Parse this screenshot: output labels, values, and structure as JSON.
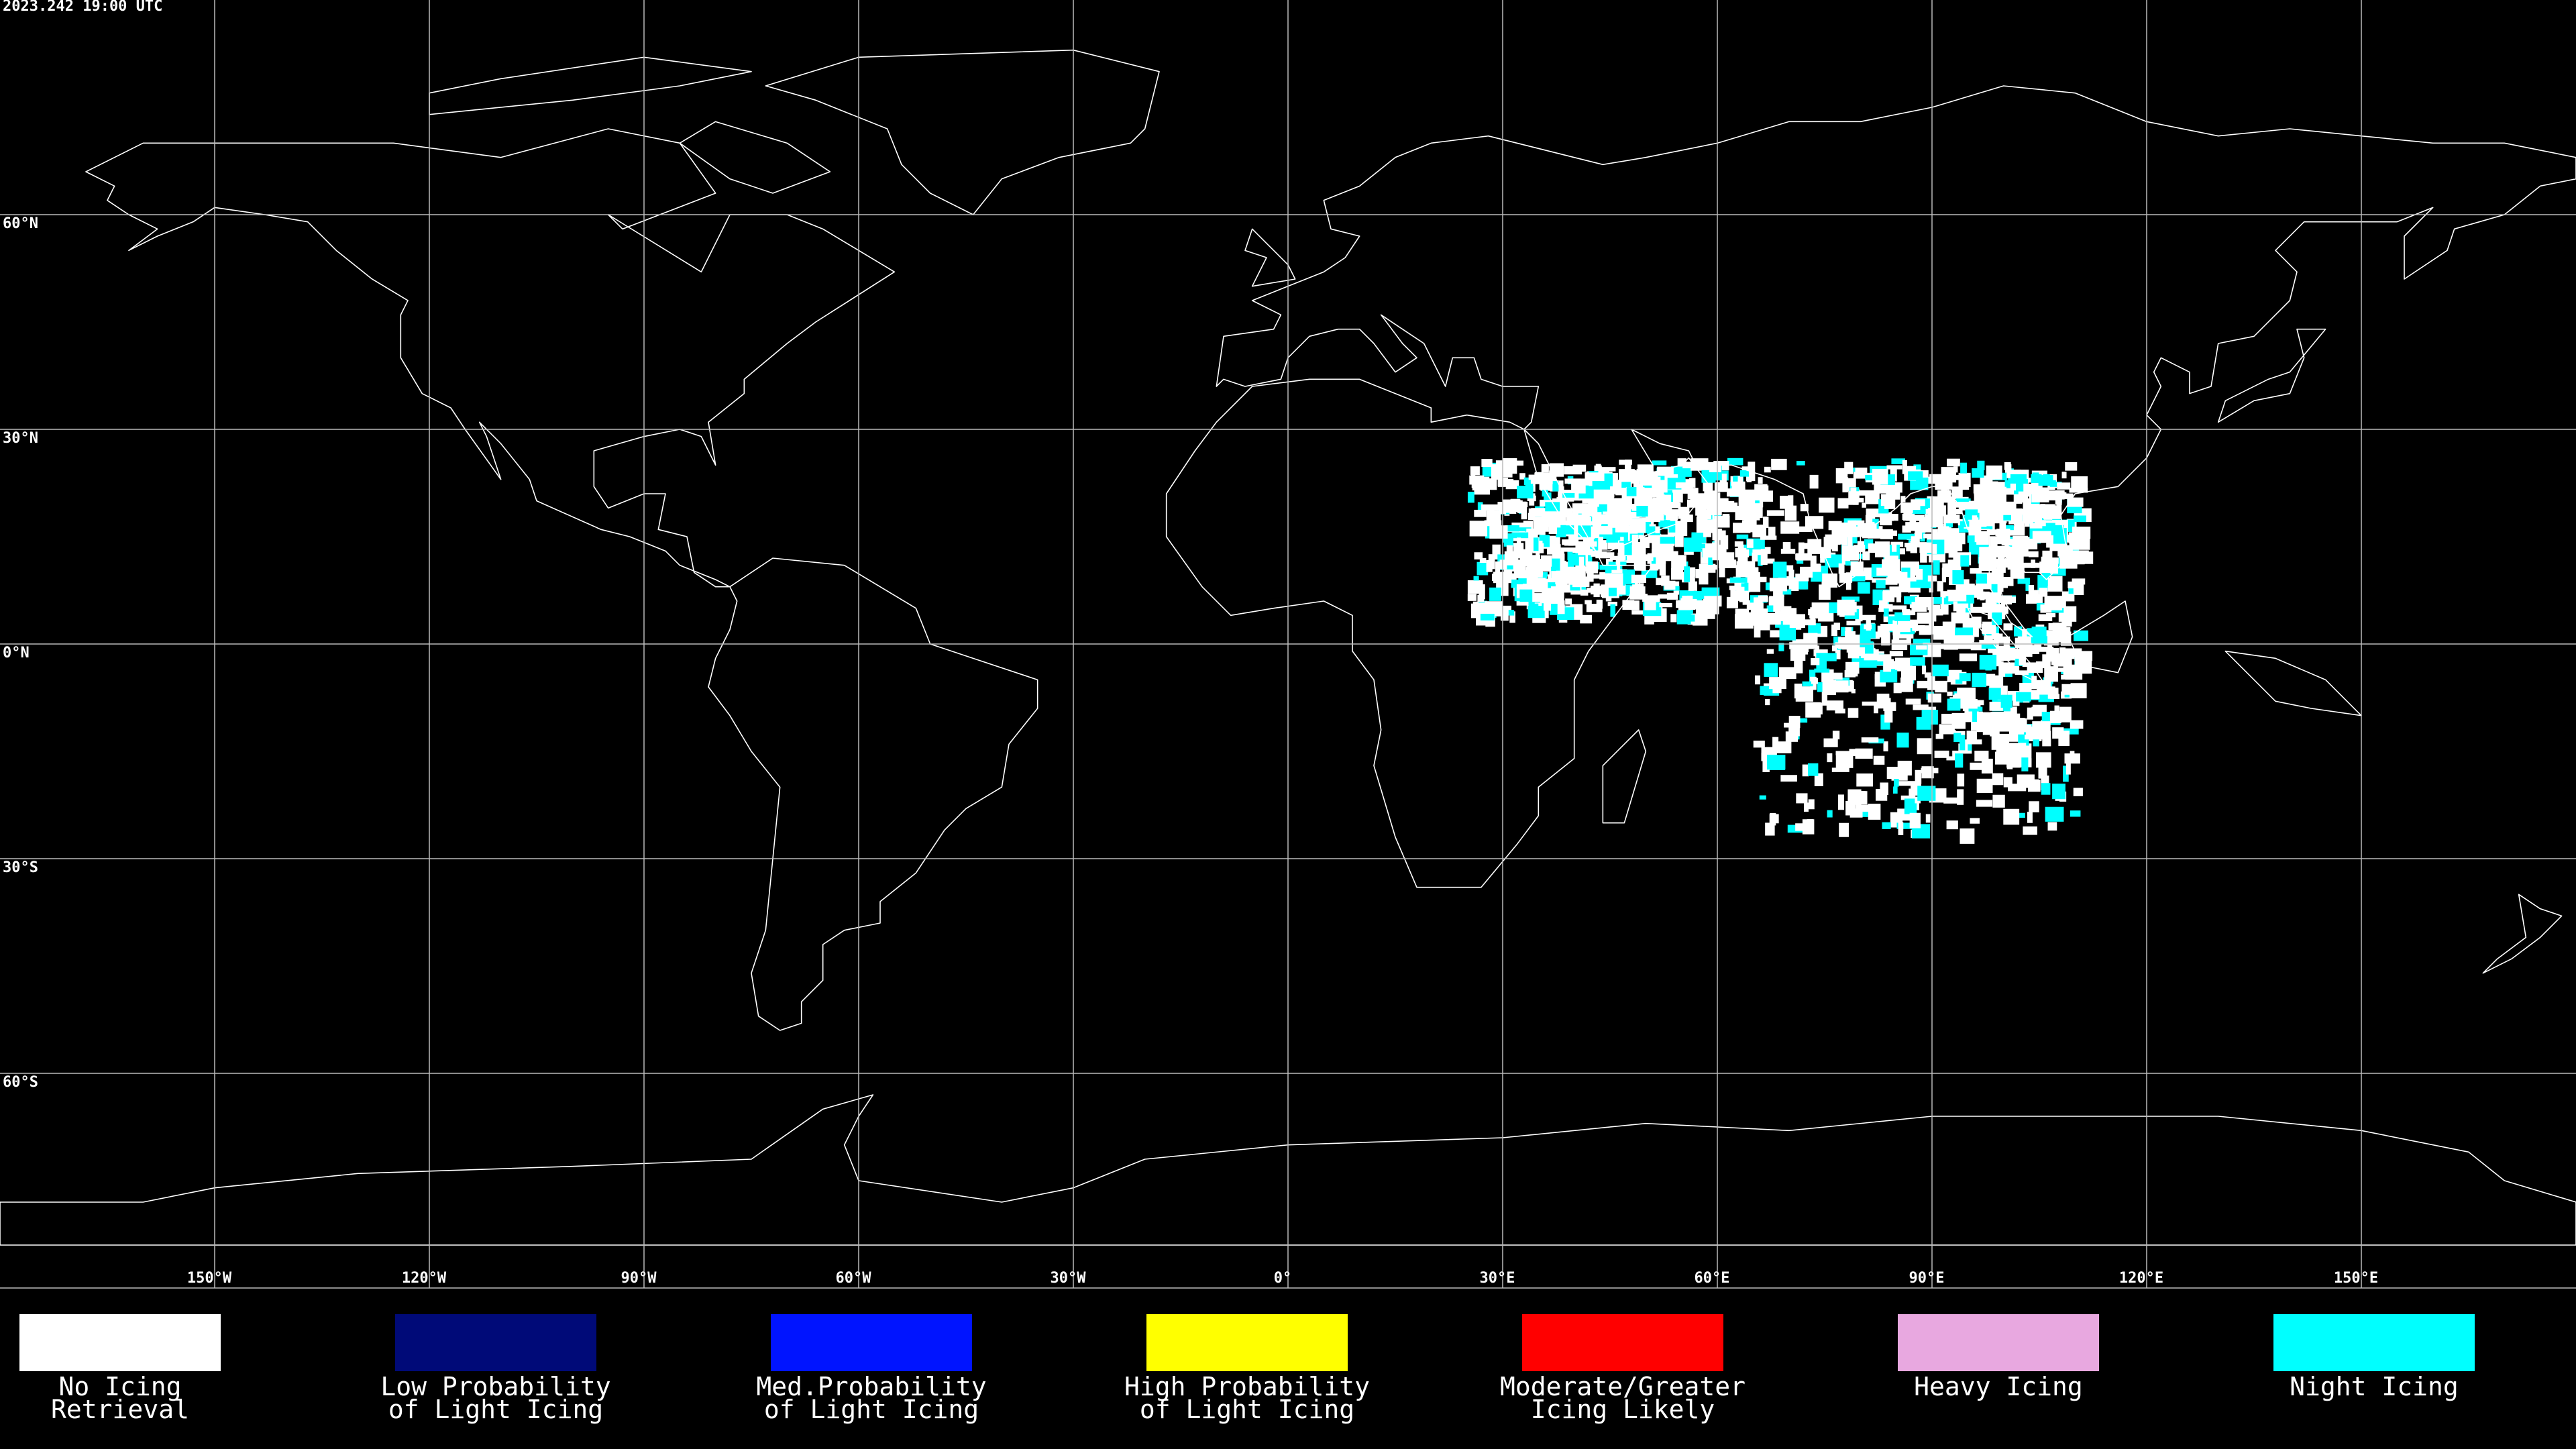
{
  "timestamp": "2023.242 19:00 UTC",
  "lat_labels": [
    "60°N",
    "30°N",
    "0°N",
    "30°S",
    "60°S"
  ],
  "lon_labels": [
    "150°W",
    "120°W",
    "90°W",
    "60°W",
    "30°W",
    "0°",
    "30°E",
    "60°E",
    "90°E",
    "120°E",
    "150°E"
  ],
  "legend": [
    {
      "label": [
        "No Icing",
        "Retrieval"
      ],
      "color": "#ffffff"
    },
    {
      "label": [
        "Low Probability",
        "of Light Icing"
      ],
      "color": "#000a78"
    },
    {
      "label": [
        "Med.Probability",
        "of Light Icing"
      ],
      "color": "#0014ff"
    },
    {
      "label": [
        "High Probability",
        "of Light Icing"
      ],
      "color": "#ffff00"
    },
    {
      "label": [
        "Moderate/Greater",
        "Icing Likely"
      ],
      "color": "#ff0000"
    },
    {
      "label": [
        "Heavy Icing"
      ],
      "color": "#e8a8e0"
    },
    {
      "label": [
        "Night Icing"
      ],
      "color": "#00ffff"
    }
  ]
}
